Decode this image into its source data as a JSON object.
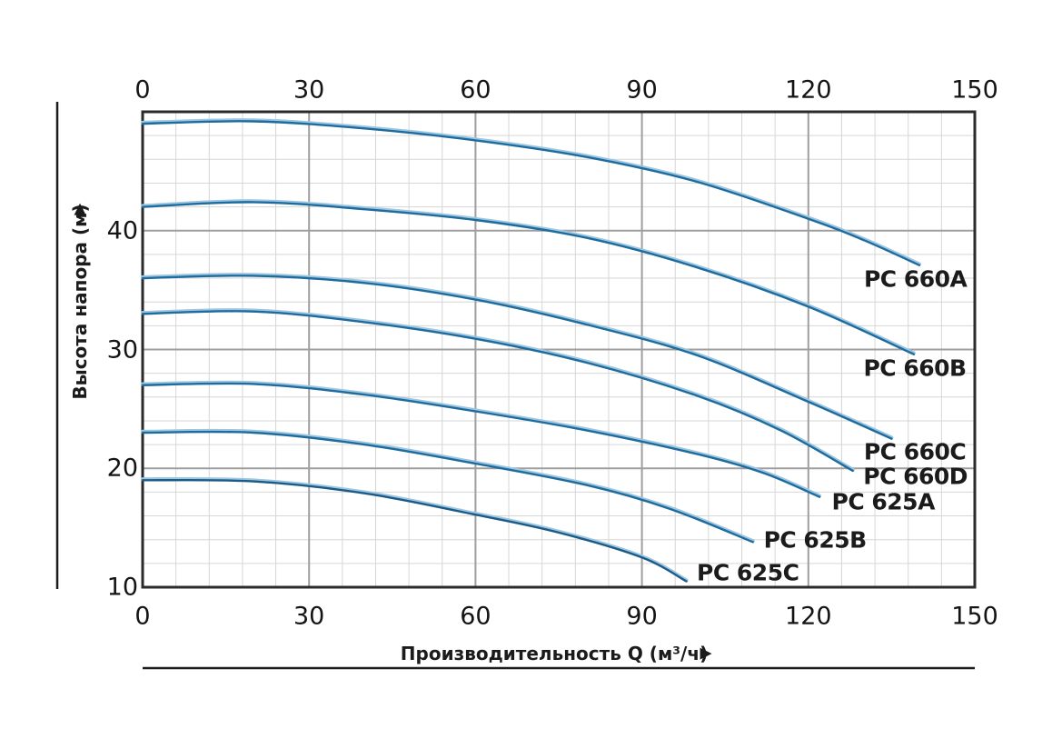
{
  "page": {
    "background": "#ffffff",
    "description": "Pump performance curves: head vs capacity for PC series pumps"
  },
  "icons": {
    "up_arrow": "▲",
    "right_arrow": "▶"
  },
  "colors": {
    "curve_main": "#1e6b9e",
    "curve_highlight": "#9dc6e0",
    "curve_dark": "#1c5a88",
    "grid_minor": "#d6d6d6",
    "grid_major": "#9f9f9f",
    "plot_border": "#2b2b2b",
    "axis_line": "#1c1c1c",
    "text": "#1b1b1b"
  },
  "chart_data": {
    "type": "line",
    "title": "",
    "xlabel": "Производительность Q (м³/ч)",
    "ylabel": "Высота напора (м)",
    "xlim": [
      0,
      150
    ],
    "ylim": [
      10,
      50
    ],
    "x_ticks": [
      0,
      30,
      60,
      90,
      120,
      150
    ],
    "x_ticks_shown": "top and bottom",
    "y_ticks": [
      10,
      20,
      30,
      40
    ],
    "x_minor_step": 6,
    "y_minor_step": 2,
    "x_major_step": 30,
    "y_major_step": 10,
    "grid": true,
    "legend_position": "inline labels at right end of each curve",
    "series": [
      {
        "name": "PC 660A",
        "color": "#1e6b9e",
        "points": [
          [
            0,
            49.0
          ],
          [
            20,
            49.2
          ],
          [
            40,
            48.6
          ],
          [
            60,
            47.6
          ],
          [
            80,
            46.2
          ],
          [
            100,
            44.1
          ],
          [
            120,
            41.0
          ],
          [
            130,
            39.2
          ],
          [
            140,
            37.1
          ]
        ],
        "label_at": [
          139.3,
          35.9
        ]
      },
      {
        "name": "PC 660B",
        "color": "#1e6b9e",
        "points": [
          [
            0,
            42.0
          ],
          [
            20,
            42.4
          ],
          [
            40,
            41.8
          ],
          [
            60,
            40.9
          ],
          [
            80,
            39.4
          ],
          [
            100,
            36.9
          ],
          [
            120,
            33.6
          ],
          [
            139,
            29.6
          ]
        ],
        "label_at": [
          139.2,
          28.4
        ]
      },
      {
        "name": "PC 660C",
        "color": "#1e6b9e",
        "points": [
          [
            0,
            36.0
          ],
          [
            20,
            36.2
          ],
          [
            40,
            35.6
          ],
          [
            60,
            34.2
          ],
          [
            80,
            32.1
          ],
          [
            100,
            29.5
          ],
          [
            120,
            25.6
          ],
          [
            135,
            22.5
          ]
        ],
        "label_at": [
          139.2,
          21.4
        ]
      },
      {
        "name": "PC 660D",
        "color": "#1e6b9e",
        "points": [
          [
            0,
            33.0
          ],
          [
            20,
            33.2
          ],
          [
            40,
            32.3
          ],
          [
            60,
            30.9
          ],
          [
            80,
            28.9
          ],
          [
            100,
            26.1
          ],
          [
            115,
            23.2
          ],
          [
            128,
            19.8
          ]
        ],
        "label_at": [
          139.3,
          19.3
        ]
      },
      {
        "name": "PC 625A",
        "color": "#1e6b9e",
        "points": [
          [
            0,
            27.0
          ],
          [
            20,
            27.1
          ],
          [
            40,
            26.2
          ],
          [
            60,
            24.8
          ],
          [
            80,
            23.2
          ],
          [
            100,
            21.2
          ],
          [
            112,
            19.6
          ],
          [
            122,
            17.6
          ]
        ],
        "label_at": [
          133.5,
          17.2
        ]
      },
      {
        "name": "PC 625B",
        "color": "#1e6b9e",
        "points": [
          [
            0,
            23.0
          ],
          [
            20,
            23.0
          ],
          [
            40,
            22.0
          ],
          [
            60,
            20.4
          ],
          [
            80,
            18.6
          ],
          [
            95,
            16.6
          ],
          [
            110,
            13.8
          ]
        ],
        "label_at": [
          121.2,
          14.0
        ]
      },
      {
        "name": "PC 625C",
        "color": "#1c5a88",
        "points": [
          [
            0,
            19.0
          ],
          [
            20,
            18.9
          ],
          [
            40,
            17.9
          ],
          [
            60,
            16.1
          ],
          [
            75,
            14.6
          ],
          [
            90,
            12.5
          ],
          [
            98,
            10.5
          ]
        ],
        "label_at": [
          109.1,
          11.2
        ]
      }
    ]
  }
}
